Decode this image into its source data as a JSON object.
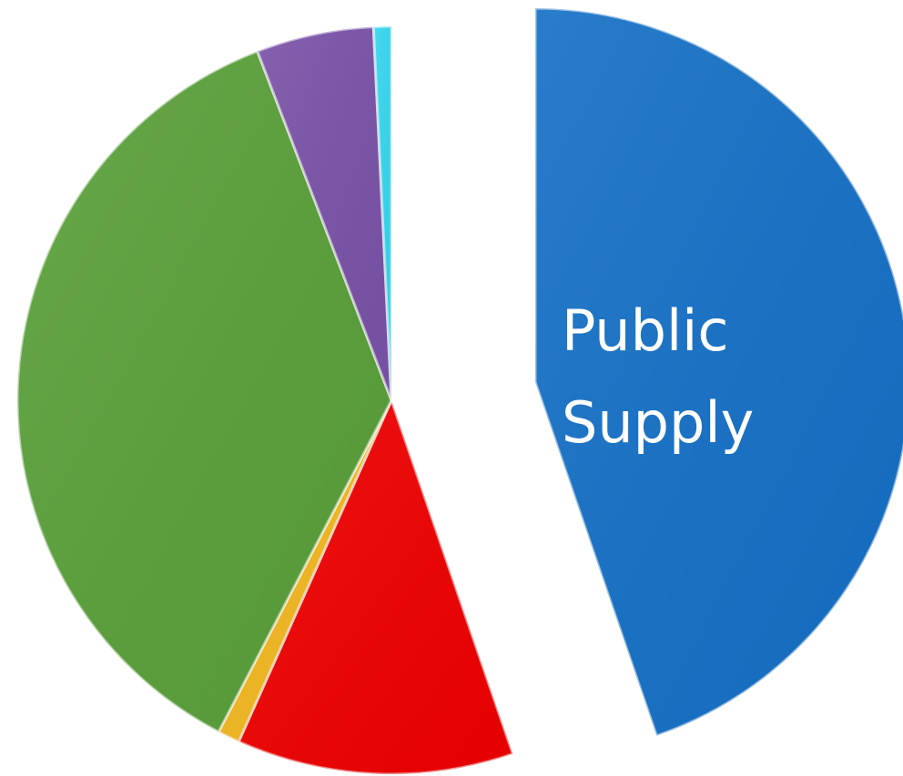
{
  "chart_data": {
    "type": "pie",
    "style": "exploded-3d",
    "slices": [
      {
        "label": "Public Supply",
        "value": 46.8,
        "color": "#1570c6",
        "exploded": true
      },
      {
        "label": "",
        "value": 12.5,
        "color": "#ef0000",
        "exploded": false
      },
      {
        "label": "",
        "value": 1.0,
        "color": "#f2b820",
        "exploded": false
      },
      {
        "label": "",
        "value": 38.2,
        "color": "#5aa03a",
        "exploded": false
      },
      {
        "label": "",
        "value": 5.3,
        "color": "#7a52a8",
        "exploded": false
      },
      {
        "label": "",
        "value": 0.8,
        "color": "#36d7ef",
        "exploded": false
      }
    ]
  }
}
